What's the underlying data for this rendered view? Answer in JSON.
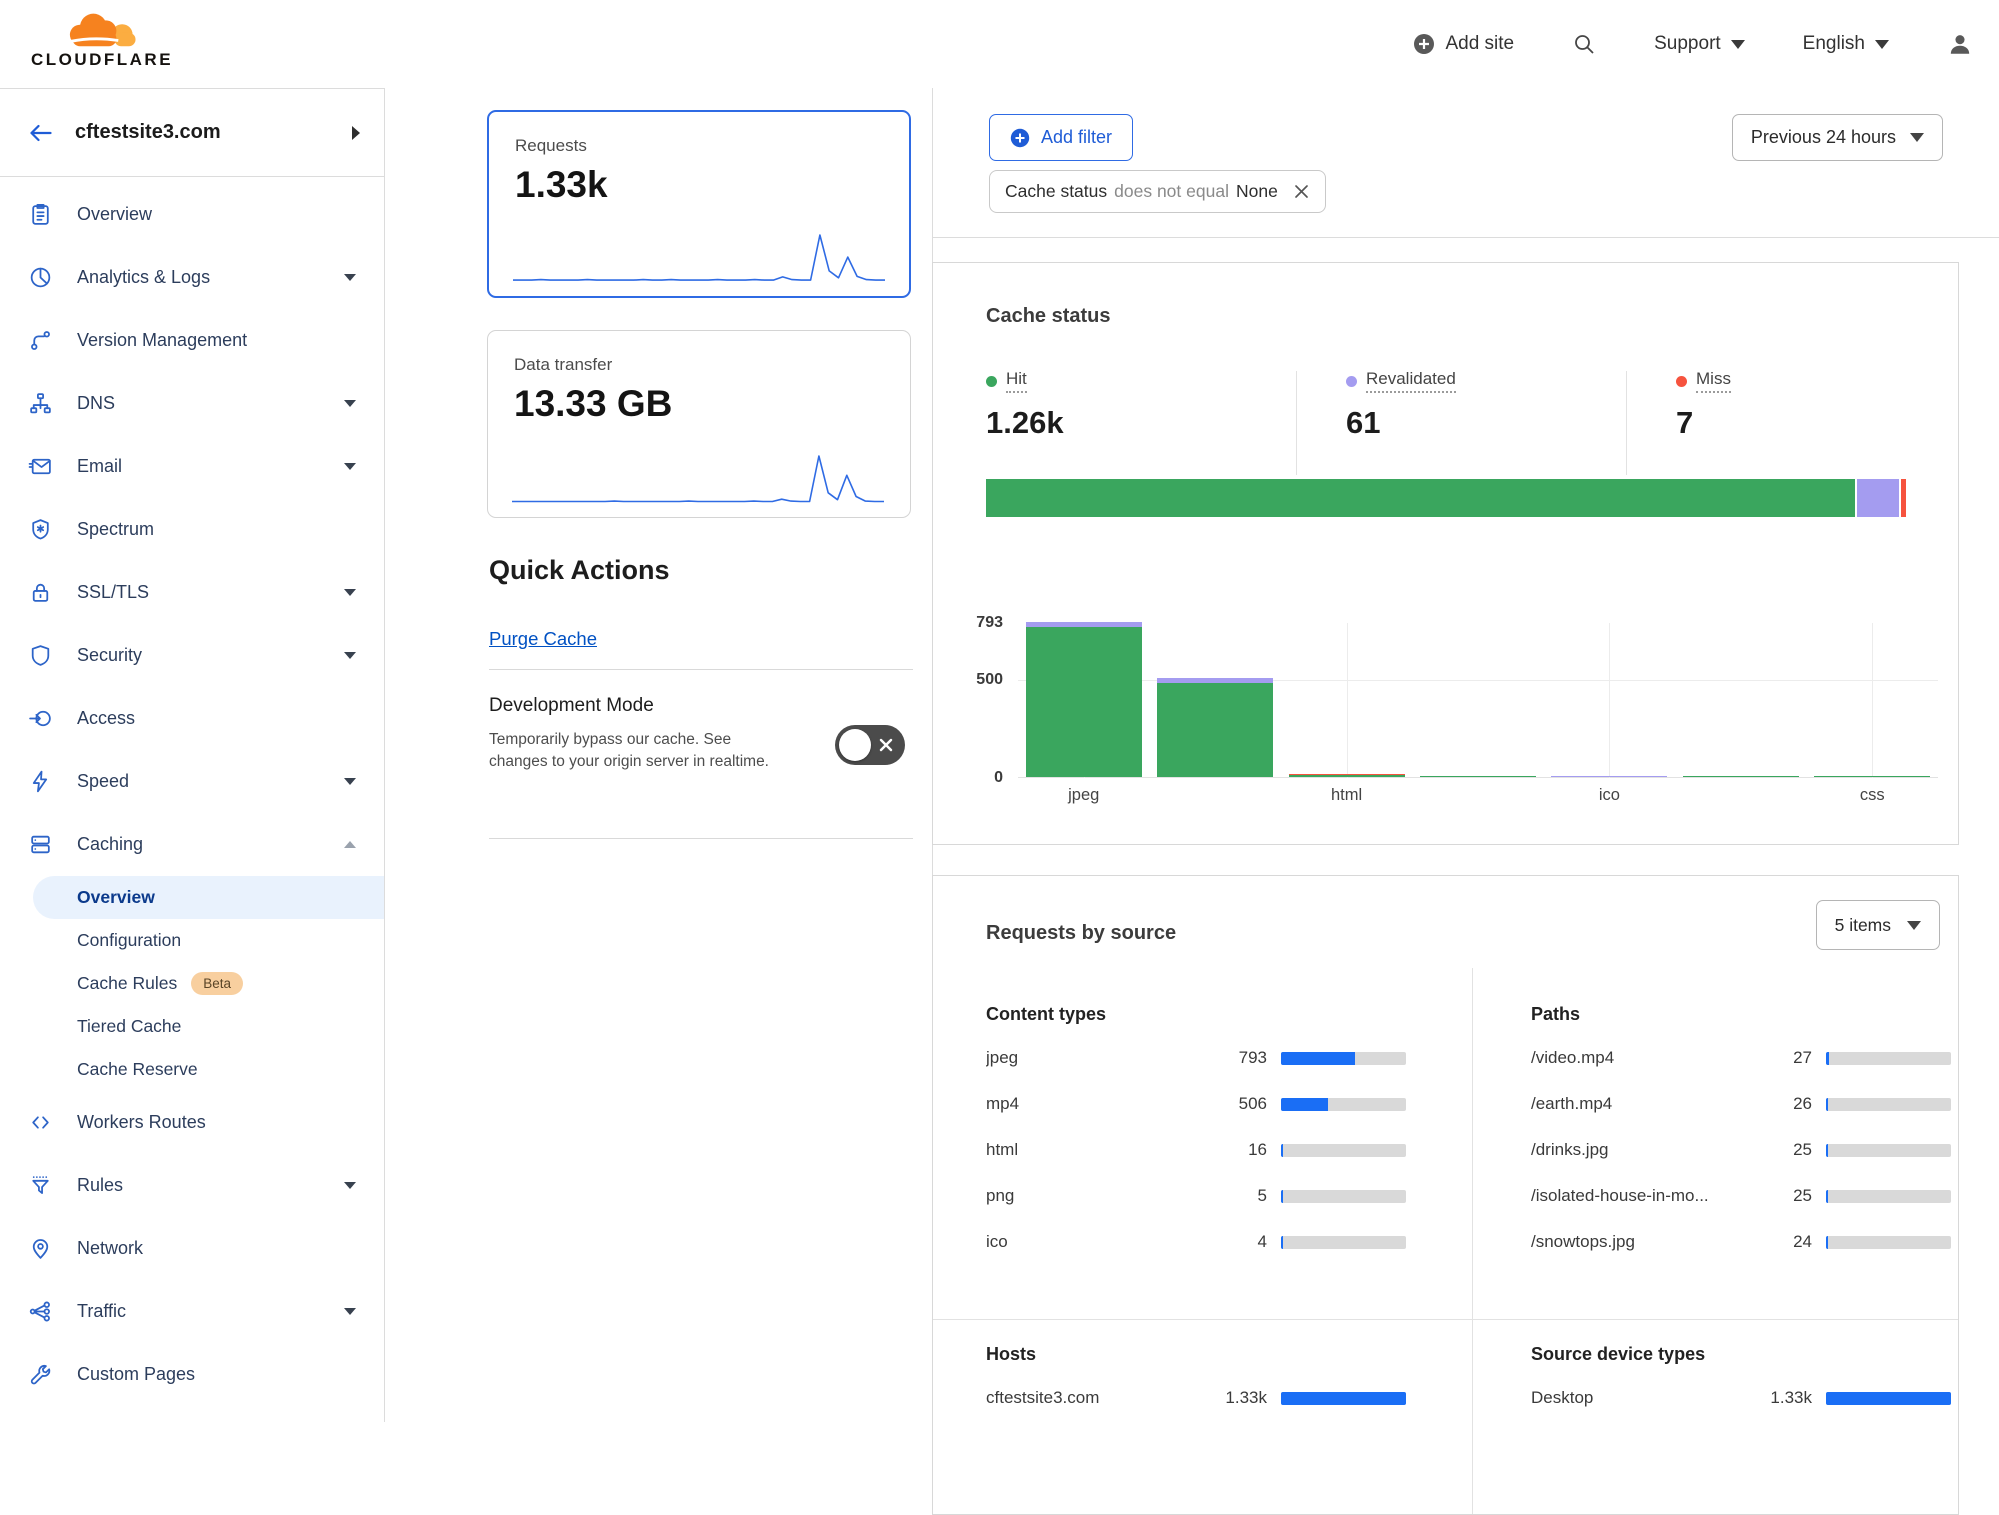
{
  "colors": {
    "accent": "#1f5cd6",
    "link": "#0051c3",
    "sparkline": "#2f6be4",
    "bar_blue": "#1a6ef5",
    "hit_green": "#3aa65e",
    "revalidated_purple": "#a49cf0",
    "miss_red": "#f6533e",
    "brand_orange": "#f6821f",
    "brand_orange_light": "#fbad41"
  },
  "topbar": {
    "brand": "CLOUDFLARE",
    "add_site": "Add site",
    "support": "Support",
    "language": "English"
  },
  "sidebar": {
    "site_name": "cftestsite3.com",
    "items": [
      {
        "label": "Overview"
      },
      {
        "label": "Analytics & Logs",
        "caret": "down"
      },
      {
        "label": "Version Management"
      },
      {
        "label": "DNS",
        "caret": "down"
      },
      {
        "label": "Email",
        "caret": "down"
      },
      {
        "label": "Spectrum"
      },
      {
        "label": "SSL/TLS",
        "caret": "down"
      },
      {
        "label": "Security",
        "caret": "down"
      },
      {
        "label": "Access"
      },
      {
        "label": "Speed",
        "caret": "down"
      },
      {
        "label": "Caching",
        "caret": "up",
        "expanded": true
      },
      {
        "label": "Workers Routes"
      },
      {
        "label": "Rules",
        "caret": "down"
      },
      {
        "label": "Network"
      },
      {
        "label": "Traffic",
        "caret": "down"
      },
      {
        "label": "Custom Pages"
      }
    ],
    "caching_subitems": [
      {
        "label": "Overview",
        "selected": true
      },
      {
        "label": "Configuration"
      },
      {
        "label": "Cache Rules",
        "badge": "Beta"
      },
      {
        "label": "Tiered Cache"
      },
      {
        "label": "Cache Reserve"
      }
    ]
  },
  "summary_cards": [
    {
      "title": "Requests",
      "value": "1.33k",
      "selected": true
    },
    {
      "title": "Data transfer",
      "value": "13.33 GB",
      "selected": false
    }
  ],
  "quick_actions": {
    "title": "Quick Actions",
    "purge_cache_label": "Purge Cache",
    "development_mode": {
      "title": "Development Mode",
      "description": "Temporarily bypass our cache. See changes to your origin server in realtime.",
      "state": "off"
    }
  },
  "filters": {
    "add_filter_label": "Add filter",
    "chip": {
      "field": "Cache status",
      "operator": "does not equal",
      "value": "None"
    },
    "time_range": "Previous 24 hours"
  },
  "cache_status": {
    "title": "Cache status",
    "stats": [
      {
        "label": "Hit",
        "value": "1.26k",
        "color": "#3aa65e"
      },
      {
        "label": "Revalidated",
        "value": "61",
        "color": "#a49cf0"
      },
      {
        "label": "Miss",
        "value": "7",
        "color": "#f6533e"
      }
    ]
  },
  "requests_by_source": {
    "title": "Requests by source",
    "items_dropdown": "5 items"
  },
  "chart_data": [
    {
      "id": "requests_sparkline",
      "type": "line",
      "title": "Requests",
      "total_display": "1.33k",
      "note": "unlabeled sparkline, shape estimated from pixels",
      "values": [
        2,
        2,
        2,
        3,
        2,
        2,
        2,
        2,
        3,
        2,
        2,
        2,
        2,
        2,
        3,
        2,
        2,
        3,
        2,
        2,
        2,
        2,
        3,
        2,
        2,
        2,
        3,
        2,
        2,
        9,
        3,
        2,
        2,
        100,
        22,
        7,
        52,
        10,
        3,
        2,
        2
      ]
    },
    {
      "id": "data_transfer_sparkline",
      "type": "line",
      "title": "Data transfer",
      "total_display": "13.33 GB",
      "note": "unlabeled sparkline, shape estimated from pixels",
      "values": [
        1,
        1,
        1,
        1,
        1,
        1,
        1,
        1,
        1,
        1,
        1,
        2,
        1,
        1,
        1,
        1,
        1,
        1,
        1,
        2,
        1,
        1,
        1,
        1,
        1,
        1,
        2,
        1,
        1,
        6,
        2,
        1,
        1,
        100,
        20,
        5,
        58,
        12,
        2,
        1,
        1
      ]
    },
    {
      "id": "cache_status_distribution",
      "type": "stacked_bar_horizontal",
      "title": "Cache status",
      "series": [
        {
          "name": "Hit",
          "value": 1260,
          "color": "#3aa65e"
        },
        {
          "name": "Revalidated",
          "value": 61,
          "color": "#a49cf0"
        },
        {
          "name": "Miss",
          "value": 7,
          "color": "#f6533e"
        }
      ]
    },
    {
      "id": "cache_status_by_type",
      "type": "stacked_column",
      "categories": [
        "jpeg",
        "mp4",
        "html",
        "png",
        "ico",
        "",
        "css"
      ],
      "x_labels_visible": [
        "jpeg",
        "html",
        "ico",
        "css"
      ],
      "ylim": [
        0,
        793
      ],
      "yticks": [
        0,
        500,
        793
      ],
      "grid": true,
      "series": [
        {
          "name": "Hit",
          "color": "#3aa65e",
          "values": [
            765,
            480,
            9,
            5,
            0,
            2,
            1
          ]
        },
        {
          "name": "Revalidated",
          "color": "#a49cf0",
          "values": [
            28,
            26,
            0,
            0,
            4,
            0,
            0
          ]
        },
        {
          "name": "Miss",
          "color": "#f6533e",
          "values": [
            0,
            0,
            7,
            0,
            0,
            0,
            0
          ]
        }
      ]
    },
    {
      "id": "content_types",
      "type": "bar",
      "title": "Content types",
      "scale_max": 1333,
      "categories": [
        "jpeg",
        "mp4",
        "html",
        "png",
        "ico"
      ],
      "values": [
        793,
        506,
        16,
        5,
        4
      ],
      "display": [
        "793",
        "506",
        "16",
        "5",
        "4"
      ]
    },
    {
      "id": "paths",
      "type": "bar",
      "title": "Paths",
      "scale_max": 1333,
      "categories": [
        "/video.mp4",
        "/earth.mp4",
        "/drinks.jpg",
        "/isolated-house-in-mo...",
        "/snowtops.jpg"
      ],
      "values": [
        27,
        26,
        25,
        25,
        24
      ],
      "display": [
        "27",
        "26",
        "25",
        "25",
        "24"
      ]
    },
    {
      "id": "hosts",
      "type": "bar",
      "title": "Hosts",
      "scale_max": 1333,
      "categories": [
        "cftestsite3.com"
      ],
      "values": [
        1330
      ],
      "display": [
        "1.33k"
      ]
    },
    {
      "id": "source_device_types",
      "type": "bar",
      "title": "Source device types",
      "scale_max": 1333,
      "categories": [
        "Desktop"
      ],
      "values": [
        1330
      ],
      "display": [
        "1.33k"
      ]
    }
  ]
}
